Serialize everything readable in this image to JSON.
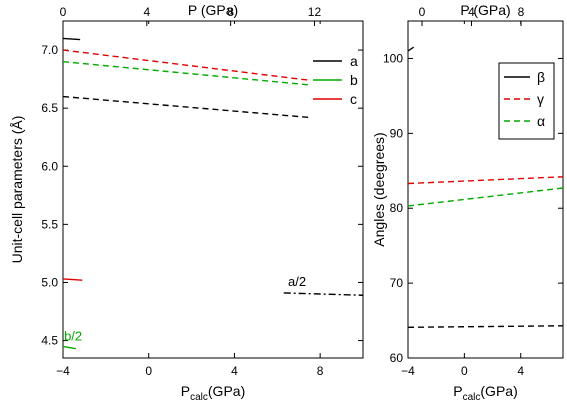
{
  "chart_data": [
    {
      "type": "line",
      "xlabel": "Pcalc(GPa)",
      "ylabel": "Unit-cell parameters (Å)",
      "x2label": "P (GPa)",
      "xlim": [
        -4,
        10
      ],
      "ylim": [
        4.35,
        7.25
      ],
      "x_ticks": [
        "-4",
        "0",
        "4",
        "8"
      ],
      "x2_ticks": [
        "0",
        "4",
        "8",
        "12"
      ],
      "y_ticks": [
        "4.5",
        "5.0",
        "5.5",
        "6.0",
        "6.5",
        "7.0"
      ],
      "legend": [
        "a",
        "b",
        "c"
      ],
      "legend_position": "top-right",
      "series": [
        {
          "name": "a",
          "color": "#000000",
          "dash": "solid",
          "x": [
            -4,
            -3.2
          ],
          "y": [
            7.1,
            7.09
          ]
        },
        {
          "name": "c",
          "color": "#e00000",
          "dash": "solid",
          "x": [
            -4,
            -3.1
          ],
          "y": [
            5.03,
            5.02
          ]
        },
        {
          "name": "b/2",
          "color": "#00aa00",
          "dash": "solid",
          "x": [
            -4,
            -3.4
          ],
          "y": [
            4.45,
            4.43
          ]
        },
        {
          "name": "c",
          "color": "#e00000",
          "dash": "dashed",
          "x": [
            -4,
            7.5
          ],
          "y": [
            7.0,
            6.74
          ]
        },
        {
          "name": "b",
          "color": "#00aa00",
          "dash": "dashed",
          "x": [
            -4,
            7.5
          ],
          "y": [
            6.9,
            6.7
          ]
        },
        {
          "name": "a",
          "color": "#000000",
          "dash": "dashed",
          "x": [
            -4,
            7.5
          ],
          "y": [
            6.6,
            6.42
          ]
        },
        {
          "name": "a/2",
          "color": "#000000",
          "dash": "dashdot",
          "x": [
            6.3,
            10
          ],
          "y": [
            4.91,
            4.89
          ]
        }
      ],
      "annotations": [
        {
          "text": "a/2",
          "color": "#000000",
          "x": 6.5,
          "y": 4.97
        },
        {
          "text": "b/2",
          "color": "#00aa00",
          "x": -3.95,
          "y": 4.5
        }
      ]
    },
    {
      "type": "line",
      "xlabel": "Pcalc(GPa)",
      "ylabel": "Angles (deegrees)",
      "x2label": "P (GPa)",
      "xlim": [
        -4,
        7
      ],
      "ylim": [
        60,
        105
      ],
      "x_ticks": [
        "-4",
        "0",
        "4"
      ],
      "x2_ticks": [
        "0",
        "4",
        "8"
      ],
      "y_ticks": [
        "60",
        "70",
        "80",
        "90",
        "100"
      ],
      "legend": [
        "β",
        "γ",
        "α"
      ],
      "legend_position": "top-right",
      "series": [
        {
          "name": "β",
          "color": "#000000",
          "dash": "solid",
          "x": [
            -4,
            -3.6
          ],
          "y": [
            101,
            101.5
          ]
        },
        {
          "name": "γ",
          "color": "#e00000",
          "dash": "dashed",
          "x": [
            -4,
            7
          ],
          "y": [
            83.3,
            84.2
          ]
        },
        {
          "name": "α",
          "color": "#00aa00",
          "dash": "dashed",
          "x": [
            -4,
            7
          ],
          "y": [
            80.3,
            82.7
          ]
        },
        {
          "name": "β",
          "color": "#000000",
          "dash": "dashed",
          "x": [
            -4,
            7
          ],
          "y": [
            64.1,
            64.3
          ]
        }
      ]
    }
  ]
}
